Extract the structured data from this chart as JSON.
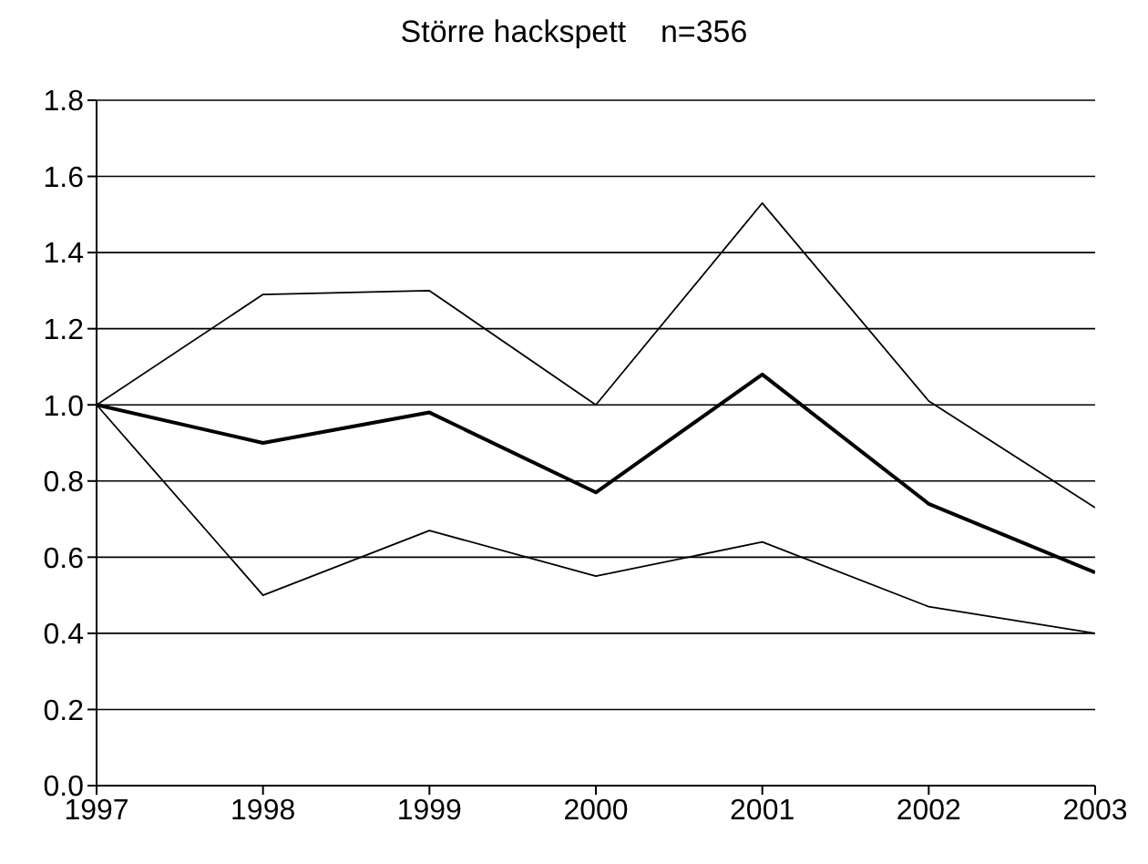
{
  "chart_data": {
    "type": "line",
    "title": "Större hackspett    n=356",
    "categories": [
      "1997",
      "1998",
      "1999",
      "2000",
      "2001",
      "2002",
      "2003"
    ],
    "series": [
      {
        "color": "#000000",
        "values": [
          1.0,
          1.29,
          1.3,
          1.0,
          1.53,
          1.01,
          0.73
        ]
      },
      {
        "color": "#000000",
        "values": [
          1.0,
          0.9,
          0.98,
          0.77,
          1.08,
          0.74,
          0.56
        ]
      },
      {
        "color": "#000000",
        "values": [
          1.0,
          0.5,
          0.67,
          0.55,
          0.64,
          0.47,
          0.4
        ]
      }
    ],
    "ylim": [
      0,
      1.8
    ],
    "yticks": [
      {
        "value": 0,
        "label": "0.0"
      },
      0.2,
      0.4,
      0.6,
      0.8,
      {
        "value": 1,
        "label": "1.0"
      },
      1.2,
      1.4,
      1.6,
      1.8
    ],
    "grid": "y",
    "marker": "none",
    "line_style": "solid"
  }
}
